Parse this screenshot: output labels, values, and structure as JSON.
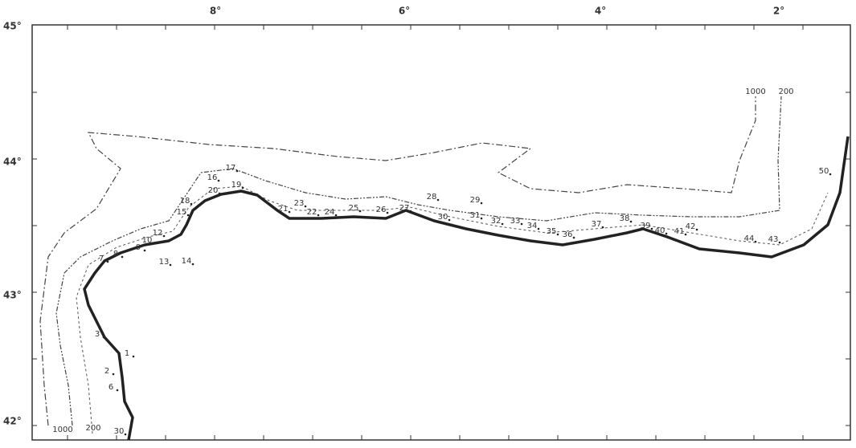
{
  "lat_labels": [
    "45°",
    "44°",
    "43°",
    "42°"
  ],
  "lon_labels": [
    "8°",
    "6°",
    "4°",
    "2°"
  ],
  "stations": [
    "1",
    "2",
    "3",
    "6",
    "7",
    "8",
    "9",
    "10",
    "12",
    "13",
    "14",
    "18",
    "15",
    "16",
    "17",
    "20",
    "19",
    "21",
    "23",
    "22",
    "24",
    "25",
    "26",
    "27",
    "28",
    "29",
    "30",
    "31",
    "32",
    "33",
    "34",
    "35",
    "36",
    "37",
    "38",
    "39",
    "40",
    "41",
    "42",
    "44",
    "43",
    "50",
    "30"
  ],
  "isobath_labels": [
    "1000",
    "200",
    "1000",
    "200"
  ]
}
